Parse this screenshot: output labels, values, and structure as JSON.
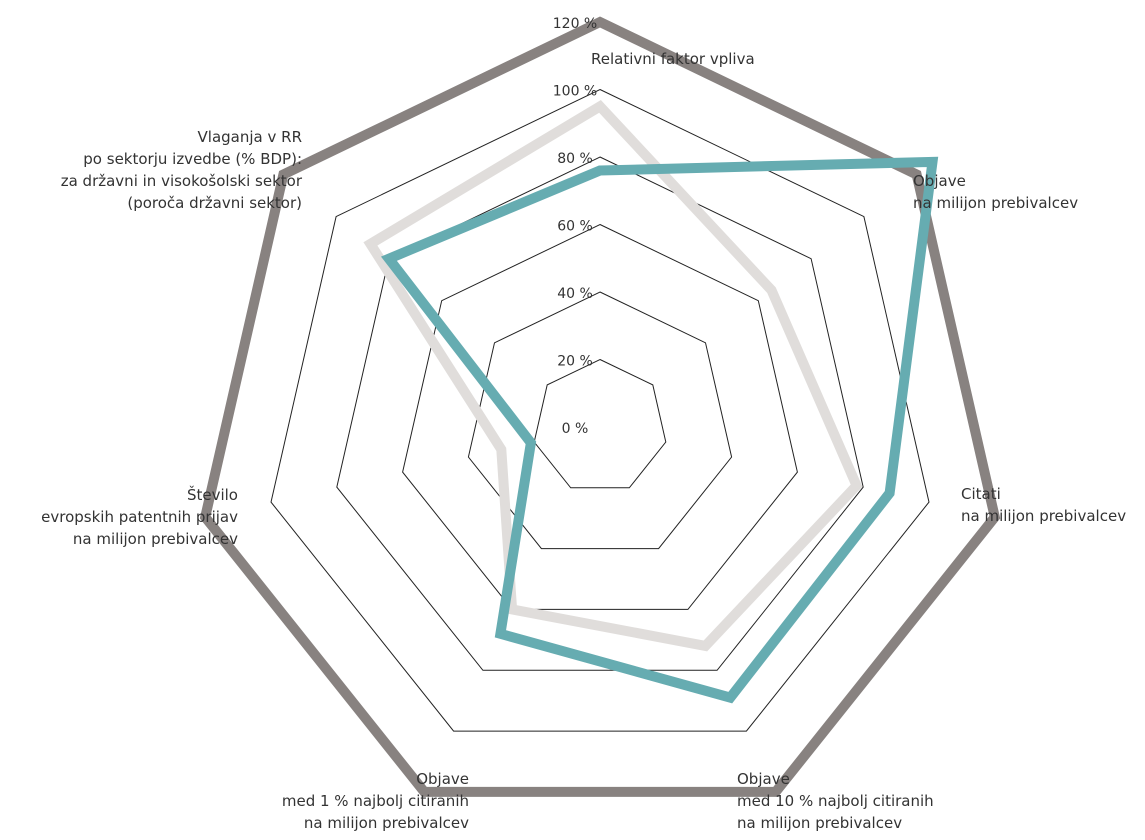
{
  "chart_data": {
    "type": "radar",
    "categories": [
      [
        "Relativni faktor vpliva"
      ],
      [
        "Objave",
        "na milijon prebivalcev"
      ],
      [
        "Citati",
        "na milijon prebivalcev"
      ],
      [
        "Objave",
        "med 10 % najbolj citiranih",
        "na milijon prebivalcev"
      ],
      [
        "Objave",
        "med 1 % najbolj citiranih",
        "na milijon prebivalcev"
      ],
      [
        "Število",
        "evropskih patentnih prijav",
        "na milijon prebivalcev"
      ],
      [
        "Vlaganja v RR",
        "po sektorju izvedbe (% BDP):",
        "za državni in visokošolski sektor",
        "(poroča državni sektor)"
      ]
    ],
    "ticks": [
      "0 %",
      "20 %",
      "40 %",
      "60 %",
      "80 %",
      "100 %",
      "120 %"
    ],
    "tick_values": [
      0,
      20,
      40,
      60,
      80,
      100,
      120
    ],
    "rlim": [
      0,
      120
    ],
    "series": [
      {
        "values": [
          120,
          120,
          120,
          120,
          120,
          120,
          120
        ],
        "color": "#888280"
      },
      {
        "values": [
          95,
          65,
          78,
          72,
          60,
          30,
          87
        ],
        "color": "#e0dddb"
      },
      {
        "values": [
          76,
          126,
          88,
          89,
          68,
          21,
          80
        ],
        "color": "#66acb1"
      }
    ],
    "gridlines": [
      20,
      40,
      60,
      80,
      100
    ]
  }
}
